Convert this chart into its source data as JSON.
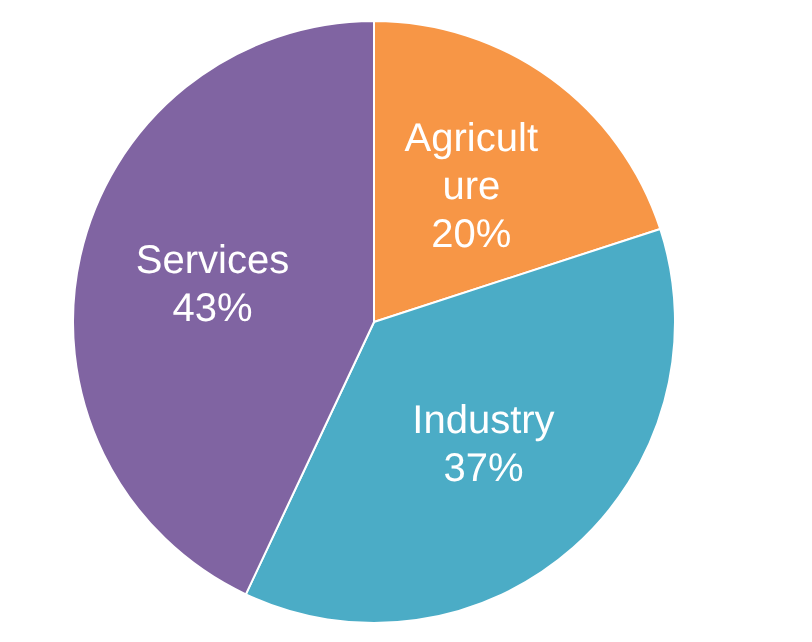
{
  "chart_data": {
    "type": "pie",
    "categories": [
      "Agriculture",
      "Industry",
      "Services"
    ],
    "values": [
      20,
      37,
      43
    ],
    "value_labels": [
      "20%",
      "37%",
      "43%"
    ],
    "colors": [
      "#f79646",
      "#4bacc6",
      "#8064a2"
    ],
    "legend": false
  }
}
